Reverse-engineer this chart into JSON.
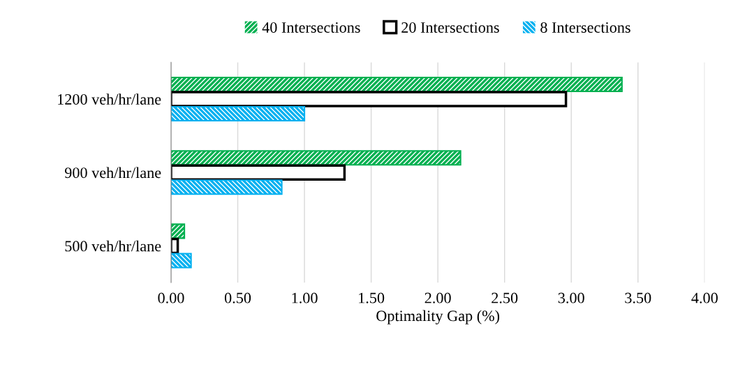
{
  "chart_data": {
    "type": "bar",
    "orientation": "horizontal",
    "xlabel": "Optimality Gap (%)",
    "categories": [
      "1200 veh/hr/lane",
      "900 veh/hr/lane",
      "500 veh/hr/lane"
    ],
    "series": [
      {
        "name": "40 Intersections",
        "color": "#00b050",
        "values": [
          3.38,
          2.17,
          0.1
        ]
      },
      {
        "name": "20 Intersections",
        "color": "#000000",
        "values": [
          2.96,
          1.3,
          0.05
        ]
      },
      {
        "name": "8 Intersections",
        "color": "#00b0f0",
        "values": [
          1.0,
          0.83,
          0.15
        ]
      }
    ],
    "xlim": [
      0,
      4
    ],
    "xticks": [
      {
        "value": 0,
        "label": "0.00"
      },
      {
        "value": 0.5,
        "label": "0.50"
      },
      {
        "value": 1,
        "label": "1.00"
      },
      {
        "value": 1.5,
        "label": "1.50"
      },
      {
        "value": 2,
        "label": "2.00"
      },
      {
        "value": 2.5,
        "label": "2.50"
      },
      {
        "value": 3,
        "label": "3.00"
      },
      {
        "value": 3.5,
        "label": "3.50"
      },
      {
        "value": 4,
        "label": "4.00"
      }
    ],
    "grid": "x",
    "legend": "top"
  }
}
